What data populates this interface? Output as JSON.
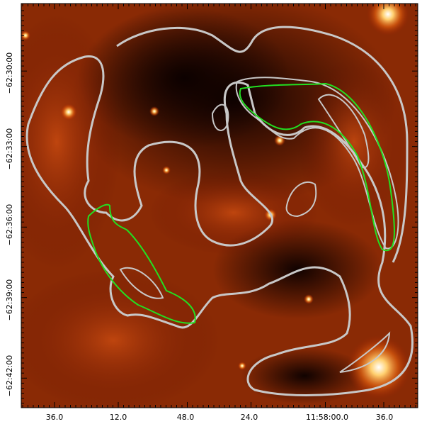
{
  "axes": {
    "y_labels": [
      "−62:30:00",
      "−62:33:00",
      "−62:36:00",
      "−62:39:00",
      "−62:42:00"
    ],
    "x_labels": [
      "36.0",
      "12.0",
      "48.0",
      "24.0",
      "11:58:00.0",
      "36.0"
    ]
  }
}
